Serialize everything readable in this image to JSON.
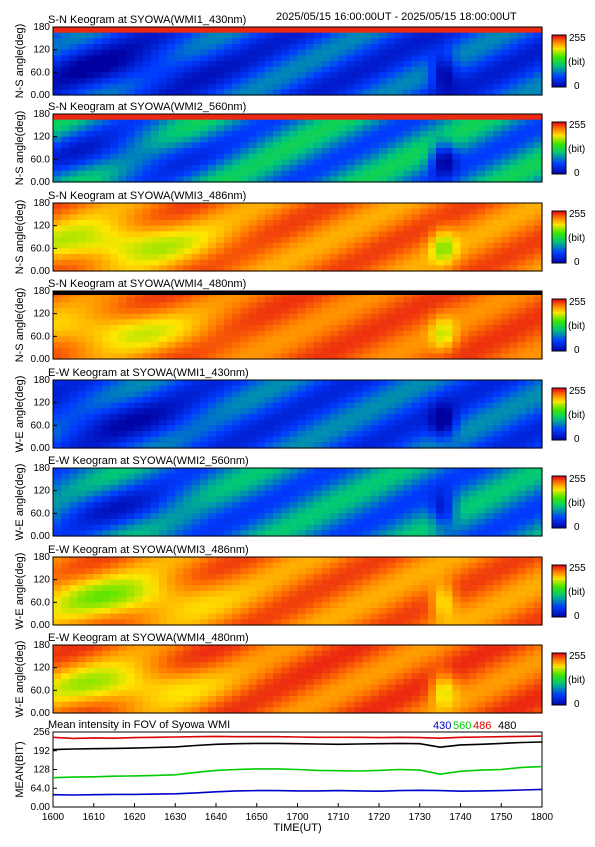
{
  "header": {
    "range": "2025/05/15 16:00:00UT - 2025/05/15 18:00:00UT"
  },
  "chart_data": [
    {
      "type": "heatmap",
      "title": "S-N Keogram at SYOWA(WMI1_430nm)",
      "ylabel": "N-S angle(deg)",
      "yticks": [
        "0.00",
        "60.0",
        "120",
        "180"
      ],
      "colorbar": {
        "max_label": "255",
        "unit_label": "(bit)",
        "min_label": "0",
        "scale": "blue-green-red"
      },
      "profile": {
        "base": 0.2,
        "activity": 0.22,
        "topband": "red"
      }
    },
    {
      "type": "heatmap",
      "title": "S-N Keogram at SYOWA(WMI2_560nm)",
      "ylabel": "N-S angle(deg)",
      "yticks": [
        "0.00",
        "60.0",
        "120",
        "180"
      ],
      "colorbar": {
        "max_label": "255",
        "unit_label": "(bit)",
        "min_label": "0",
        "scale": "blue-green-red"
      },
      "profile": {
        "base": 0.32,
        "activity": 0.25,
        "topband": "red"
      }
    },
    {
      "type": "heatmap",
      "title": "S-N Keogram at SYOWA(WMI3_486nm)",
      "ylabel": "N-S angle(deg)",
      "yticks": [
        "0.00",
        "60.0",
        "120",
        "180"
      ],
      "colorbar": {
        "max_label": "255",
        "unit_label": "(bit)",
        "min_label": "0",
        "scale": "blue-green-red"
      },
      "profile": {
        "base": 0.82,
        "activity": 0.12,
        "topband": "none"
      }
    },
    {
      "type": "heatmap",
      "title": "S-N Keogram at SYOWA(WMI4_480nm)",
      "ylabel": "N-S angle(deg)",
      "yticks": [
        "0.00",
        "60.0",
        "120",
        "180"
      ],
      "colorbar": {
        "max_label": "255",
        "unit_label": "(bit)",
        "min_label": "0",
        "scale": "blue-green-red"
      },
      "profile": {
        "base": 0.84,
        "activity": 0.1,
        "topband": "black"
      }
    },
    {
      "type": "heatmap",
      "title": "E-W Keogram at SYOWA(WMI1_430nm)",
      "ylabel": "W-E angle(deg)",
      "yticks": [
        "0.00",
        "60.0",
        "120",
        "180"
      ],
      "colorbar": {
        "max_label": "255",
        "unit_label": "(bit)",
        "min_label": "0",
        "scale": "blue-green-red"
      },
      "profile": {
        "base": 0.22,
        "activity": 0.2,
        "topband": "none"
      }
    },
    {
      "type": "heatmap",
      "title": "E-W Keogram at SYOWA(WMI2_560nm)",
      "ylabel": "W-E angle(deg)",
      "yticks": [
        "0.00",
        "60.0",
        "120",
        "180"
      ],
      "colorbar": {
        "max_label": "255",
        "unit_label": "(bit)",
        "min_label": "0",
        "scale": "blue-green-red"
      },
      "profile": {
        "base": 0.3,
        "activity": 0.22,
        "topband": "none"
      }
    },
    {
      "type": "heatmap",
      "title": "E-W Keogram at SYOWA(WMI3_486nm)",
      "ylabel": "W-E angle(deg)",
      "yticks": [
        "0.00",
        "60.0",
        "120",
        "180"
      ],
      "colorbar": {
        "max_label": "255",
        "unit_label": "(bit)",
        "min_label": "0",
        "scale": "blue-green-red"
      },
      "profile": {
        "base": 0.82,
        "activity": 0.12,
        "topband": "none"
      }
    },
    {
      "type": "heatmap",
      "title": "E-W Keogram at SYOWA(WMI4_480nm)",
      "ylabel": "W-E angle(deg)",
      "yticks": [
        "0.00",
        "60.0",
        "120",
        "180"
      ],
      "colorbar": {
        "max_label": "255",
        "unit_label": "(bit)",
        "min_label": "0",
        "scale": "blue-green-red"
      },
      "profile": {
        "base": 0.84,
        "activity": 0.12,
        "topband": "none"
      }
    },
    {
      "type": "line",
      "title": "Mean intensity in FOV of Syowa WMI",
      "ylabel": "MEAN(BIT)",
      "xlabel": "TIME(UT)",
      "ylim": [
        0,
        256
      ],
      "yticks": [
        "0.00",
        "64.0",
        "128",
        "192",
        "256"
      ],
      "xticks": [
        "1600",
        "1610",
        "1620",
        "1630",
        "1640",
        "1650",
        "1700",
        "1710",
        "1720",
        "1730",
        "1740",
        "1750",
        "1800"
      ],
      "x": [
        0,
        5,
        10,
        15,
        20,
        25,
        30,
        35,
        40,
        45,
        50,
        55,
        60,
        65,
        70,
        75,
        80,
        85,
        90,
        95,
        100,
        105,
        110,
        115,
        120
      ],
      "series": [
        {
          "name": "430",
          "color": "#0000cc",
          "values": [
            42,
            41,
            42,
            43,
            43,
            44,
            45,
            48,
            52,
            55,
            56,
            56,
            55,
            55,
            56,
            55,
            54,
            56,
            57,
            56,
            54,
            55,
            56,
            58,
            60
          ]
        },
        {
          "name": "560",
          "color": "#00cc00",
          "values": [
            100,
            102,
            103,
            105,
            106,
            108,
            110,
            118,
            125,
            128,
            130,
            130,
            128,
            125,
            124,
            123,
            125,
            128,
            126,
            112,
            122,
            126,
            128,
            135,
            138
          ]
        },
        {
          "name": "486",
          "color": "#dd0000",
          "values": [
            238,
            234,
            236,
            235,
            237,
            238,
            239,
            240,
            241,
            240,
            240,
            240,
            239,
            238,
            238,
            238,
            237,
            238,
            237,
            235,
            238,
            239,
            240,
            241,
            242
          ]
        },
        {
          "name": "480",
          "color": "#000000",
          "values": [
            196,
            198,
            199,
            200,
            201,
            203,
            205,
            210,
            214,
            216,
            217,
            217,
            216,
            215,
            214,
            215,
            216,
            217,
            216,
            204,
            212,
            214,
            217,
            220,
            222
          ]
        }
      ]
    }
  ]
}
